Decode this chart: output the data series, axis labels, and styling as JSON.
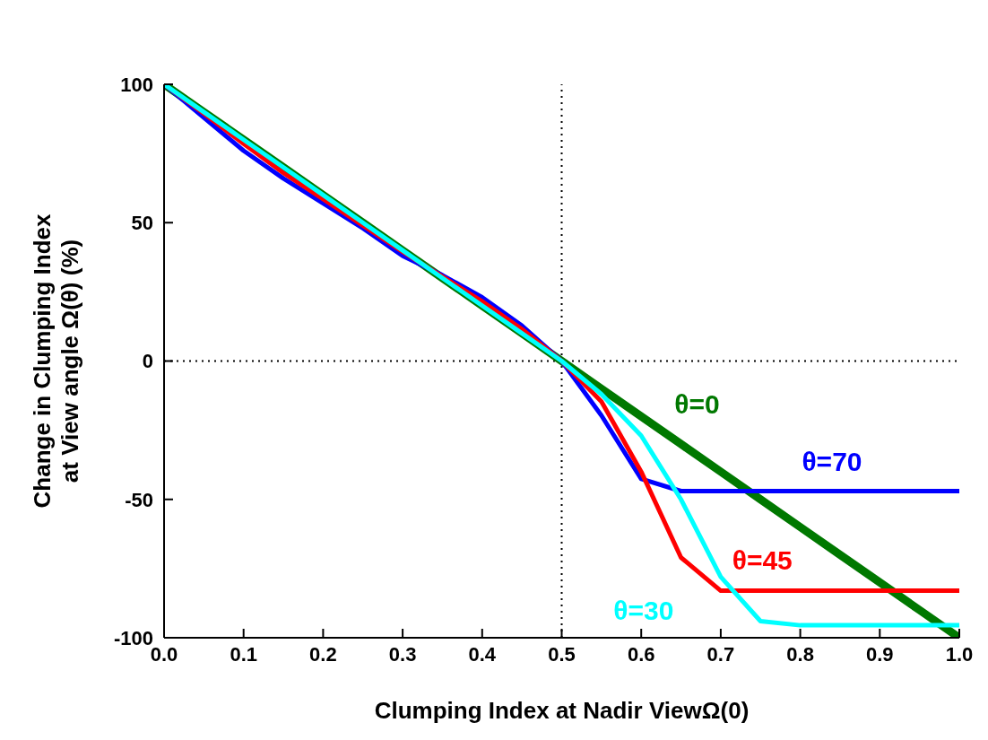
{
  "chart_data": {
    "type": "line",
    "xlabel": "Clumping Index at Nadir ViewΩ(0)",
    "ylabel": "Change in Clumping Index\nat View angle Ω(θ) (%)",
    "x": [
      0,
      0.05,
      0.1,
      0.15,
      0.2,
      0.25,
      0.3,
      0.35,
      0.4,
      0.45,
      0.5,
      0.55,
      0.6,
      0.65,
      0.7,
      0.75,
      0.8,
      0.85,
      0.9,
      0.95,
      1.0
    ],
    "series": [
      {
        "name": "θ=0",
        "color": "#007800",
        "values": [
          100,
          90,
          80,
          70,
          60,
          50,
          40,
          30,
          20,
          10,
          0,
          -10,
          -20,
          -30,
          -40,
          -50,
          -60,
          -70,
          -80,
          -90,
          -100
        ]
      },
      {
        "name": "θ=70",
        "color": "#0000ff",
        "values": [
          100,
          88,
          76,
          66,
          57,
          48,
          38,
          31,
          23,
          12.8,
          0,
          -19.7,
          -42.6,
          -47,
          -47,
          -47,
          -47,
          -47,
          -47,
          -47,
          -47
        ]
      },
      {
        "name": "θ=45",
        "color": "#ff0000",
        "values": [
          100,
          89.5,
          78.5,
          68,
          58.5,
          49,
          39.5,
          30.5,
          21.5,
          11.5,
          0,
          -14.7,
          -40,
          -71,
          -83,
          -83,
          -83,
          -83,
          -83,
          -83,
          -83
        ]
      },
      {
        "name": "θ=30",
        "color": "#00ffff",
        "values": [
          100,
          90,
          80,
          70,
          60,
          50,
          40,
          30,
          20,
          10,
          0,
          -12,
          -27,
          -50,
          -78,
          -94,
          -95.5,
          -95.5,
          -95.5,
          -95.5,
          -95.5
        ]
      }
    ],
    "xlim": [
      0,
      1
    ],
    "ylim": [
      -100,
      100
    ],
    "xticks": [
      {
        "value": 0,
        "label": "0.0"
      },
      {
        "value": 0.1,
        "label": "0.1"
      },
      {
        "value": 0.2,
        "label": "0.2"
      },
      {
        "value": 0.3,
        "label": "0.3"
      },
      {
        "value": 0.4,
        "label": "0.4"
      },
      {
        "value": 0.5,
        "label": "0.5"
      },
      {
        "value": 0.6,
        "label": "0.6"
      },
      {
        "value": 0.7,
        "label": "0.7"
      },
      {
        "value": 0.8,
        "label": "0.8"
      },
      {
        "value": 0.9,
        "label": "0.9"
      },
      {
        "value": 1.0,
        "label": "1.0"
      }
    ],
    "yticks": [
      -100,
      -50,
      0,
      50,
      100
    ],
    "ref_lines": [
      {
        "axis": "x",
        "value": 0.5,
        "color": "#000000",
        "line_style": "dotted"
      },
      {
        "axis": "y",
        "value": 0,
        "color": "#000000",
        "line_style": "dotted"
      }
    ],
    "grid": false,
    "legend": false,
    "marker": "none",
    "line_style": "solid"
  }
}
